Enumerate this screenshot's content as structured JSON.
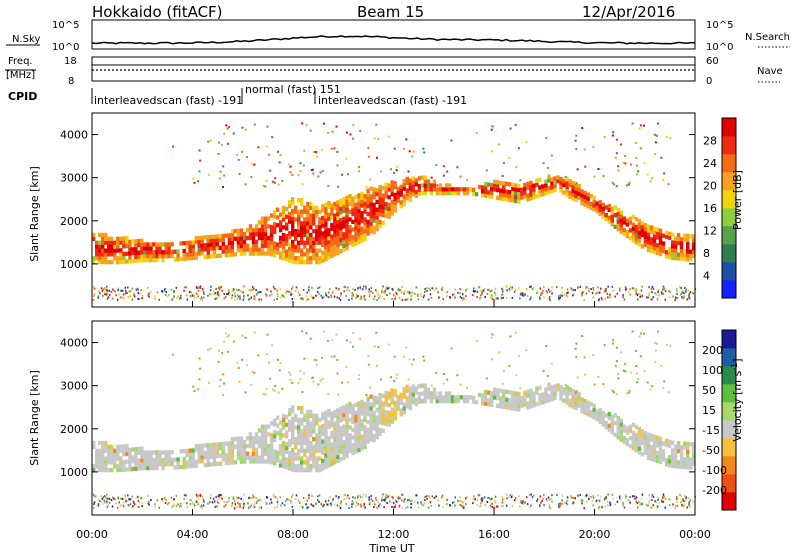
{
  "header": {
    "title": "Hokkaido (fitACF)",
    "beam": "Beam 15",
    "date": "12/Apr/2016"
  },
  "panels": {
    "nsky": {
      "label": "N.Sky",
      "ticks": [
        "10^5",
        "10^0"
      ]
    },
    "nsearch": {
      "label": "N.Search",
      "ticks": [
        "10^5",
        "10^0"
      ]
    },
    "freq": {
      "label": "Freq.",
      "unit": "[MHz]",
      "ticks": [
        "18",
        "8"
      ]
    },
    "nave": {
      "label": "Nave",
      "ticks": [
        "60",
        "0"
      ]
    },
    "cpid": {
      "label": "CPID",
      "segments": [
        {
          "text": "interleavedscan (fast) -191",
          "start_h": 0.0,
          "end_h": 6.0
        },
        {
          "text": "normal (fast) 151",
          "start_h": 6.0,
          "end_h": 8.9
        },
        {
          "text": "interleavedscan (fast) -191",
          "start_h": 8.9,
          "end_h": 24.0
        }
      ]
    }
  },
  "colorbars": {
    "power": {
      "label": "Power [dB]",
      "ticks": [
        "4",
        "8",
        "12",
        "16",
        "20",
        "24",
        "28"
      ],
      "colors": [
        "#1420ff",
        "#1e4fa8",
        "#2e7f4e",
        "#58a24b",
        "#8fce3c",
        "#f2d20e",
        "#f6a21c",
        "#f46a17",
        "#ef2a10",
        "#e00000"
      ]
    },
    "velocity": {
      "label": "Velocity [m s",
      "label_sup": "-1",
      "label_tail": "]",
      "ticks": [
        "200",
        "100",
        "50",
        "15",
        "-15",
        "-50",
        "-100",
        "-200"
      ],
      "colors": [
        "#1a1a99",
        "#1e5fa3",
        "#2a8a4a",
        "#5fbf3a",
        "#a5d96b",
        "#c8c8c8",
        "#f5c23a",
        "#f58a1a",
        "#f05010",
        "#e00000"
      ]
    }
  },
  "chart_data": [
    {
      "type": "heatmap",
      "name": "power",
      "ylabel": "Slant Range [km]",
      "ylim": [
        0,
        4500
      ],
      "yticks": [
        1000,
        2000,
        3000,
        4000
      ],
      "xlim": [
        0,
        24
      ],
      "colorbar": "Power [dB]",
      "echo_band": {
        "x_hours": [
          0,
          1,
          2,
          3,
          4,
          5,
          6,
          7,
          8,
          9,
          10,
          11,
          12,
          13,
          14,
          15,
          16,
          17,
          18,
          18.5,
          19,
          20,
          21,
          22,
          23,
          24
        ],
        "lower_km": [
          1000,
          1000,
          1050,
          1050,
          1100,
          1150,
          1200,
          1200,
          1000,
          1000,
          1300,
          1600,
          2200,
          2600,
          2600,
          2600,
          2500,
          2400,
          2600,
          2700,
          2500,
          2200,
          1700,
          1300,
          1100,
          1050
        ],
        "upper_km": [
          1700,
          1600,
          1500,
          1500,
          1550,
          1650,
          1800,
          2100,
          2500,
          2300,
          2500,
          2700,
          2900,
          3000,
          2800,
          2700,
          2900,
          2800,
          3000,
          3000,
          2900,
          2500,
          2200,
          1900,
          1700,
          1600
        ],
        "peak_power_db": 28
      }
    },
    {
      "type": "heatmap",
      "name": "velocity",
      "ylabel": "Slant Range [km]",
      "ylim": [
        0,
        4500
      ],
      "yticks": [
        1000,
        2000,
        3000,
        4000
      ],
      "xlim": [
        0,
        24
      ],
      "xlabel": "Time UT",
      "xticks": [
        "00:00",
        "04:00",
        "08:00",
        "12:00",
        "16:00",
        "20:00",
        "00:00"
      ],
      "colorbar": "Velocity [m s-1]",
      "dominant_velocity_ms": [
        -15,
        15
      ]
    }
  ]
}
